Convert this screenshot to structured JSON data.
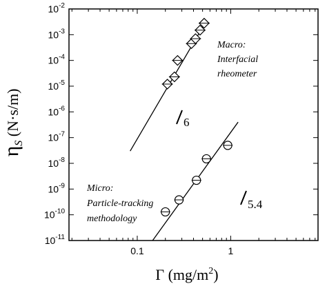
{
  "chart_data": {
    "type": "scatter",
    "xlabel": {
      "symbol": "Γ",
      "unit_pre": "(mg/m",
      "unit_sup": "2",
      "unit_post": ")"
    },
    "ylabel": {
      "symbol": "η",
      "sub": "S",
      "unit": "(N·s/m)"
    },
    "xscale": "log",
    "yscale": "log",
    "xlim": [
      0.0186,
      8.6
    ],
    "ylim": [
      1e-11,
      0.01
    ],
    "x_ticks": [
      {
        "value": 0.1,
        "label": "0.1"
      },
      {
        "value": 1,
        "label": "1"
      }
    ],
    "y_ticks": [
      {
        "exp": -2,
        "base": "10",
        "sup": "-2"
      },
      {
        "exp": -3,
        "base": "10",
        "sup": "-3"
      },
      {
        "exp": -4,
        "base": "10",
        "sup": "-4"
      },
      {
        "exp": -5,
        "base": "10",
        "sup": "-5"
      },
      {
        "exp": -6,
        "base": "10",
        "sup": "-6"
      },
      {
        "exp": -7,
        "base": "10",
        "sup": "-7"
      },
      {
        "exp": -8,
        "base": "10",
        "sup": "-8"
      },
      {
        "exp": -9,
        "base": "10",
        "sup": "-9"
      },
      {
        "exp": -10,
        "base": "10",
        "sup": "-10"
      },
      {
        "exp": -11,
        "base": "10",
        "sup": "-11"
      }
    ],
    "grid": false,
    "series": [
      {
        "marker": "diamond",
        "points": [
          {
            "x": 0.21,
            "y": 1.2e-05
          },
          {
            "x": 0.25,
            "y": 2.3e-05
          },
          {
            "x": 0.27,
            "y": 0.0001
          },
          {
            "x": 0.38,
            "y": 0.00045
          },
          {
            "x": 0.42,
            "y": 0.0007
          },
          {
            "x": 0.47,
            "y": 0.0015
          },
          {
            "x": 0.52,
            "y": 0.0028
          }
        ],
        "fit": {
          "x": [
            0.084,
            0.55
          ],
          "y": [
            3e-08,
            0.0035
          ]
        }
      },
      {
        "marker": "circle",
        "points": [
          {
            "x": 0.2,
            "y": 1.3e-10
          },
          {
            "x": 0.28,
            "y": 3.8e-10
          },
          {
            "x": 0.43,
            "y": 2.2e-09
          },
          {
            "x": 0.55,
            "y": 1.5e-08
          },
          {
            "x": 0.93,
            "y": 5e-08
          }
        ],
        "fit": {
          "x": [
            0.146,
            1.2
          ],
          "y": [
            1e-11,
            4e-07
          ]
        }
      }
    ],
    "annotations": {
      "macro": [
        "Macro:",
        "Interfacial",
        "rheometer"
      ],
      "micro": [
        "Micro:",
        "Particle-tracking",
        "methodology"
      ],
      "slope_macro": "6",
      "slope_micro": "5.4"
    }
  }
}
